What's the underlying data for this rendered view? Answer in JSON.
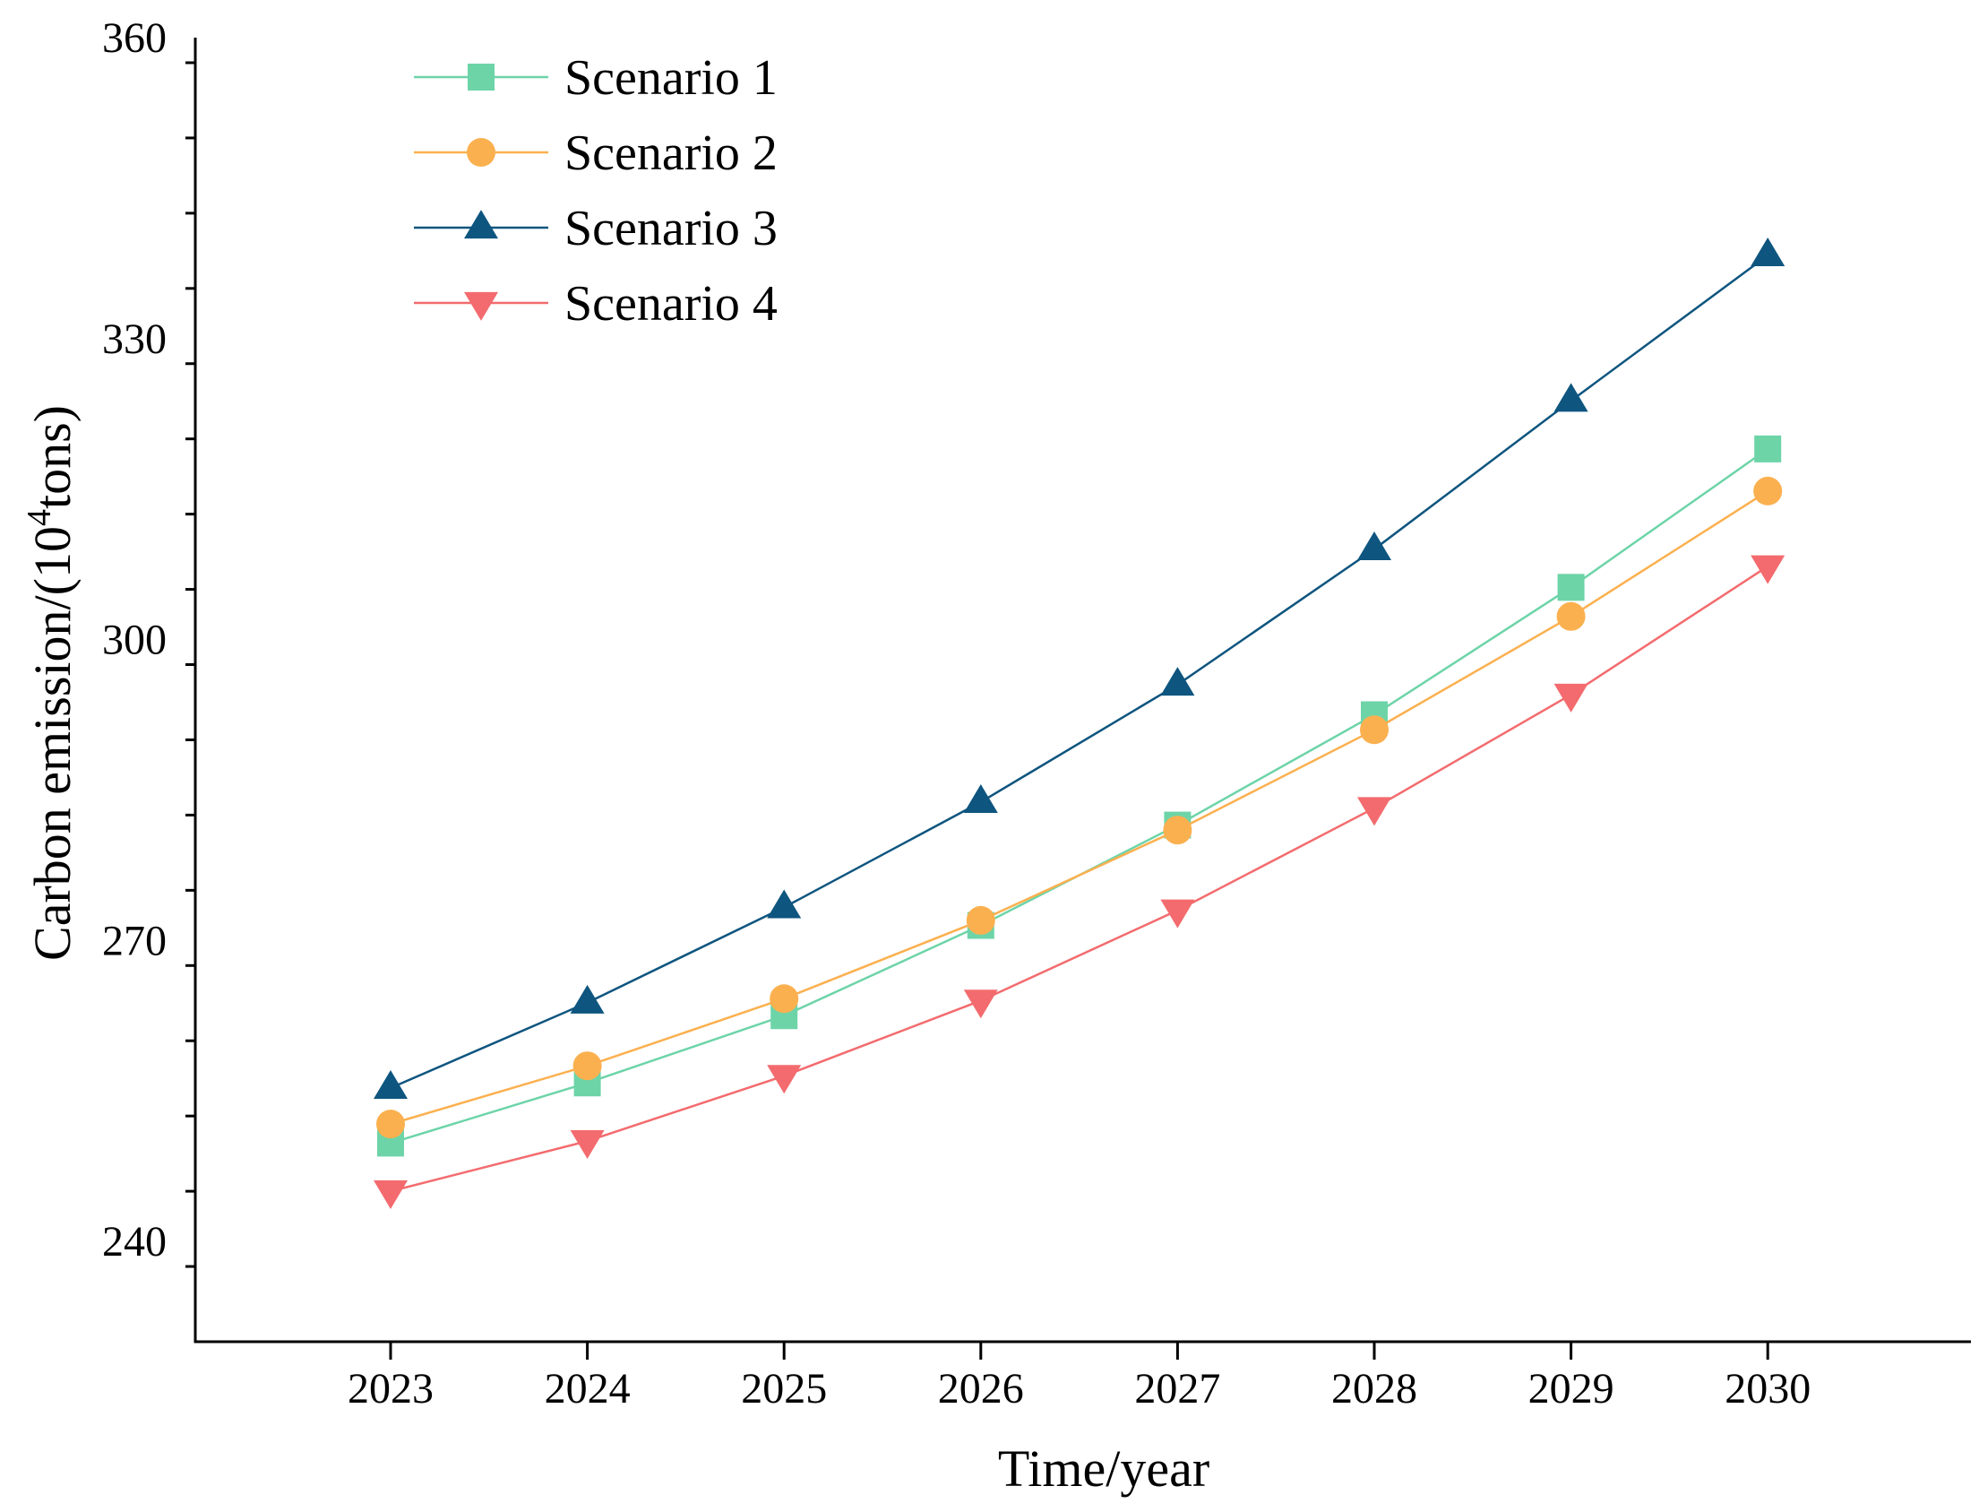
{
  "chart_data": {
    "type": "line",
    "title": "",
    "xlabel": "Time/year",
    "ylabel_prefix": "Carbon emission/(10",
    "ylabel_superscript": "4",
    "ylabel_suffix": "tons)",
    "categories": [
      "2023",
      "2024",
      "2025",
      "2026",
      "2027",
      "2028",
      "2029",
      "2030"
    ],
    "ylim": [
      230,
      360
    ],
    "yticks": [
      240,
      270,
      300,
      330,
      360
    ],
    "ytick_labels": [
      "240",
      "270",
      "300",
      "330",
      "360"
    ],
    "legend_position": "top-left",
    "grid": false,
    "series": [
      {
        "name": "Scenario 1",
        "marker": "square",
        "color": "#6dd4a8",
        "values": [
          249.8,
          255.8,
          262.5,
          271.5,
          281.5,
          292.5,
          305.2,
          319.0
        ]
      },
      {
        "name": "Scenario 2",
        "marker": "circle",
        "color": "#fbb04f",
        "values": [
          251.7,
          257.5,
          264.2,
          272.0,
          281.0,
          291.0,
          302.3,
          314.8
        ]
      },
      {
        "name": "Scenario 3",
        "marker": "triangle-up",
        "color": "#0e557f",
        "values": [
          255.3,
          263.8,
          273.3,
          283.8,
          295.5,
          309.0,
          323.8,
          338.3
        ]
      },
      {
        "name": "Scenario 4",
        "marker": "triangle-down",
        "color": "#f36b6e",
        "values": [
          245.0,
          250.0,
          256.5,
          264.0,
          273.0,
          283.2,
          294.5,
          307.3
        ]
      }
    ]
  }
}
